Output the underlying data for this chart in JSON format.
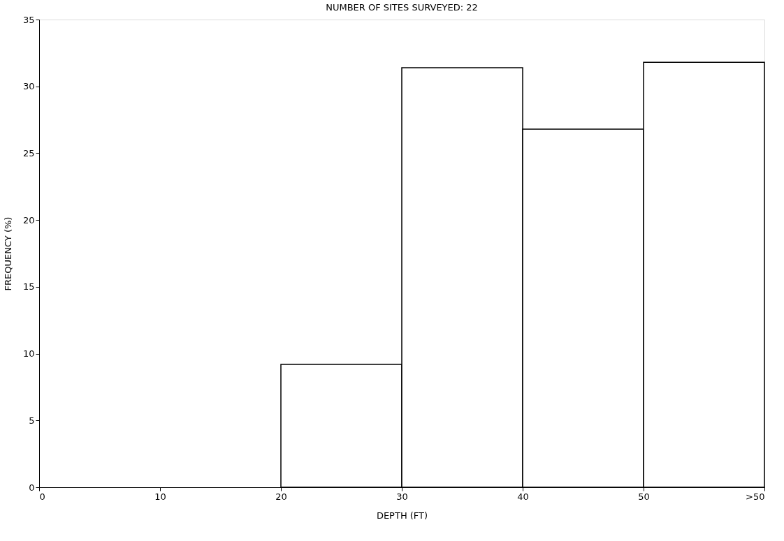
{
  "chart_data": {
    "type": "histogram",
    "title": "NUMBER OF SITES SURVEYED: 22",
    "xlabel": "DEPTH (FT)",
    "ylabel": "FREQUENCY (%)",
    "bins": [
      0,
      10,
      20,
      30,
      40,
      50,
      60
    ],
    "values": [
      0,
      0,
      9.2,
      31.4,
      26.8,
      31.8
    ],
    "color": "#ffffff",
    "xlim": [
      0,
      60
    ],
    "xticks": [
      0,
      10,
      20,
      30,
      40,
      50,
      {
        "value": 60,
        "label": ">50"
      }
    ],
    "ylim": [
      0,
      35
    ],
    "yticks": [
      0,
      5,
      10,
      15,
      20,
      25,
      30,
      35
    ],
    "grid": false
  }
}
